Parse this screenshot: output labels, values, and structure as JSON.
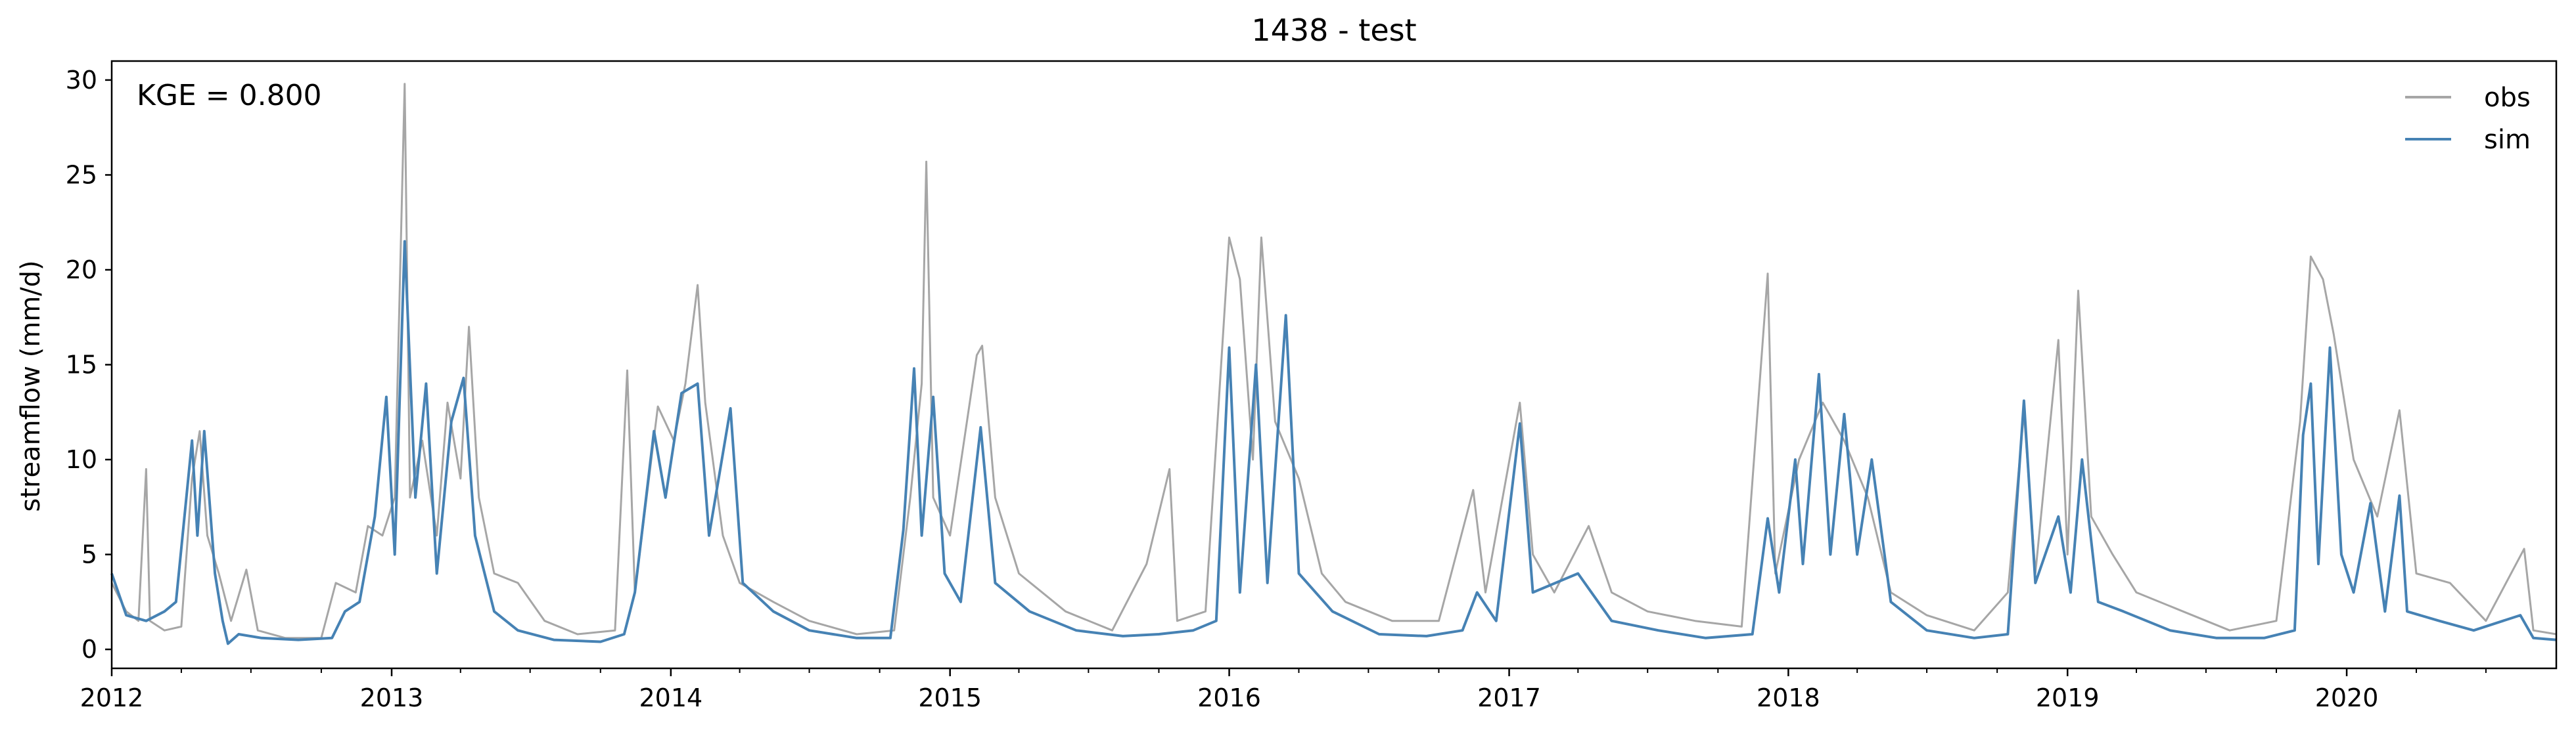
{
  "chart_data": {
    "type": "line",
    "title": "1438 - test",
    "xlabel": "",
    "ylabel": "streamflow (mm/d)",
    "xlim": [
      "2012-01-01",
      "2020-10-01"
    ],
    "ylim": [
      -1,
      31
    ],
    "x_ticks": [
      "2012",
      "2013",
      "2014",
      "2015",
      "2016",
      "2017",
      "2018",
      "2019",
      "2020"
    ],
    "y_ticks": [
      0,
      5,
      10,
      15,
      20,
      25,
      30
    ],
    "grid": false,
    "legend": "top-right",
    "annotation": "KGE = 0.800",
    "series": [
      {
        "name": "obs",
        "color": "#a6a6a6",
        "points": [
          [
            "2012-01-01",
            3.5
          ],
          [
            "2012-01-20",
            2.0
          ],
          [
            "2012-02-05",
            1.5
          ],
          [
            "2012-02-15",
            9.5
          ],
          [
            "2012-02-20",
            1.5
          ],
          [
            "2012-03-10",
            1.0
          ],
          [
            "2012-04-01",
            1.2
          ],
          [
            "2012-04-15",
            9.0
          ],
          [
            "2012-04-25",
            11.5
          ],
          [
            "2012-05-05",
            6.0
          ],
          [
            "2012-05-20",
            4.0
          ],
          [
            "2012-06-05",
            1.5
          ],
          [
            "2012-06-25",
            4.2
          ],
          [
            "2012-07-10",
            1.0
          ],
          [
            "2012-08-15",
            0.6
          ],
          [
            "2012-10-01",
            0.6
          ],
          [
            "2012-10-20",
            3.5
          ],
          [
            "2012-11-15",
            3.0
          ],
          [
            "2012-12-01",
            6.5
          ],
          [
            "2012-12-20",
            6.0
          ],
          [
            "2013-01-05",
            8.0
          ],
          [
            "2013-01-18",
            29.8
          ],
          [
            "2013-01-25",
            8.0
          ],
          [
            "2013-02-10",
            11.0
          ],
          [
            "2013-03-01",
            6.0
          ],
          [
            "2013-03-15",
            13.0
          ],
          [
            "2013-04-01",
            9.0
          ],
          [
            "2013-04-12",
            17.0
          ],
          [
            "2013-04-25",
            8.0
          ],
          [
            "2013-05-15",
            4.0
          ],
          [
            "2013-06-15",
            3.5
          ],
          [
            "2013-07-20",
            1.5
          ],
          [
            "2013-09-01",
            0.8
          ],
          [
            "2013-10-20",
            1.0
          ],
          [
            "2013-11-05",
            14.7
          ],
          [
            "2013-11-15",
            3.0
          ],
          [
            "2013-12-15",
            12.8
          ],
          [
            "2014-01-05",
            11.0
          ],
          [
            "2014-01-20",
            14.0
          ],
          [
            "2014-02-05",
            19.2
          ],
          [
            "2014-02-15",
            13.0
          ],
          [
            "2014-03-10",
            6.0
          ],
          [
            "2014-04-01",
            3.5
          ],
          [
            "2014-05-15",
            2.5
          ],
          [
            "2014-07-01",
            1.5
          ],
          [
            "2014-09-01",
            0.8
          ],
          [
            "2014-10-20",
            1.0
          ],
          [
            "2014-11-10",
            8.0
          ],
          [
            "2014-11-25",
            14.0
          ],
          [
            "2014-12-01",
            25.7
          ],
          [
            "2014-12-10",
            8.0
          ],
          [
            "2015-01-01",
            6.0
          ],
          [
            "2015-02-05",
            15.5
          ],
          [
            "2015-02-12",
            16.0
          ],
          [
            "2015-03-01",
            8.0
          ],
          [
            "2015-04-01",
            4.0
          ],
          [
            "2015-06-01",
            2.0
          ],
          [
            "2015-08-01",
            1.0
          ],
          [
            "2015-09-15",
            4.5
          ],
          [
            "2015-10-15",
            9.5
          ],
          [
            "2015-10-25",
            1.5
          ],
          [
            "2015-12-01",
            2.0
          ],
          [
            "2016-01-01",
            21.7
          ],
          [
            "2016-01-15",
            19.5
          ],
          [
            "2016-02-01",
            10.0
          ],
          [
            "2016-02-12",
            21.7
          ],
          [
            "2016-03-01",
            12.0
          ],
          [
            "2016-04-01",
            9.0
          ],
          [
            "2016-05-01",
            4.0
          ],
          [
            "2016-06-01",
            2.5
          ],
          [
            "2016-08-01",
            1.5
          ],
          [
            "2016-10-01",
            1.5
          ],
          [
            "2016-11-15",
            8.4
          ],
          [
            "2016-12-01",
            3.0
          ],
          [
            "2017-01-15",
            13.0
          ],
          [
            "2017-02-01",
            5.0
          ],
          [
            "2017-03-01",
            3.0
          ],
          [
            "2017-04-15",
            6.5
          ],
          [
            "2017-05-15",
            3.0
          ],
          [
            "2017-07-01",
            2.0
          ],
          [
            "2017-09-01",
            1.5
          ],
          [
            "2017-11-01",
            1.2
          ],
          [
            "2017-12-05",
            19.8
          ],
          [
            "2017-12-15",
            4.0
          ],
          [
            "2018-01-15",
            10.0
          ],
          [
            "2018-02-15",
            13.0
          ],
          [
            "2018-03-15",
            11.0
          ],
          [
            "2018-04-15",
            8.0
          ],
          [
            "2018-05-15",
            3.0
          ],
          [
            "2018-07-01",
            1.8
          ],
          [
            "2018-09-01",
            1.0
          ],
          [
            "2018-10-15",
            3.0
          ],
          [
            "2018-11-05",
            12.5
          ],
          [
            "2018-11-20",
            4.0
          ],
          [
            "2018-12-20",
            16.3
          ],
          [
            "2019-01-01",
            5.0
          ],
          [
            "2019-01-15",
            18.9
          ],
          [
            "2019-02-01",
            7.0
          ],
          [
            "2019-03-01",
            5.0
          ],
          [
            "2019-04-01",
            3.0
          ],
          [
            "2019-06-01",
            2.0
          ],
          [
            "2019-08-01",
            1.0
          ],
          [
            "2019-10-01",
            1.5
          ],
          [
            "2019-11-01",
            12.0
          ],
          [
            "2019-11-15",
            20.7
          ],
          [
            "2019-12-01",
            19.5
          ],
          [
            "2019-12-15",
            16.6
          ],
          [
            "2020-01-10",
            10.0
          ],
          [
            "2020-02-10",
            7.0
          ],
          [
            "2020-03-10",
            12.6
          ],
          [
            "2020-04-01",
            4.0
          ],
          [
            "2020-05-15",
            3.5
          ],
          [
            "2020-07-01",
            1.5
          ],
          [
            "2020-08-20",
            5.3
          ],
          [
            "2020-09-01",
            1.0
          ],
          [
            "2020-10-01",
            0.8
          ]
        ]
      },
      {
        "name": "sim",
        "color": "#4682b4",
        "points": [
          [
            "2012-01-01",
            4.0
          ],
          [
            "2012-01-20",
            1.8
          ],
          [
            "2012-02-15",
            1.5
          ],
          [
            "2012-03-10",
            2.0
          ],
          [
            "2012-03-25",
            2.5
          ],
          [
            "2012-04-15",
            11.0
          ],
          [
            "2012-04-22",
            6.0
          ],
          [
            "2012-05-01",
            11.5
          ],
          [
            "2012-05-15",
            4.0
          ],
          [
            "2012-05-25",
            1.5
          ],
          [
            "2012-06-01",
            0.3
          ],
          [
            "2012-06-15",
            0.8
          ],
          [
            "2012-07-15",
            0.6
          ],
          [
            "2012-09-01",
            0.5
          ],
          [
            "2012-10-15",
            0.6
          ],
          [
            "2012-11-01",
            2.0
          ],
          [
            "2012-11-20",
            2.5
          ],
          [
            "2012-12-10",
            7.0
          ],
          [
            "2012-12-25",
            13.3
          ],
          [
            "2013-01-05",
            5.0
          ],
          [
            "2013-01-18",
            21.5
          ],
          [
            "2013-02-01",
            8.0
          ],
          [
            "2013-02-15",
            14.0
          ],
          [
            "2013-03-01",
            4.0
          ],
          [
            "2013-03-20",
            12.0
          ],
          [
            "2013-04-05",
            14.3
          ],
          [
            "2013-04-20",
            6.0
          ],
          [
            "2013-05-15",
            2.0
          ],
          [
            "2013-06-15",
            1.0
          ],
          [
            "2013-08-01",
            0.5
          ],
          [
            "2013-10-01",
            0.4
          ],
          [
            "2013-11-01",
            0.8
          ],
          [
            "2013-11-15",
            3.0
          ],
          [
            "2013-12-10",
            11.5
          ],
          [
            "2013-12-25",
            8.0
          ],
          [
            "2014-01-15",
            13.5
          ],
          [
            "2014-02-05",
            14.0
          ],
          [
            "2014-02-20",
            6.0
          ],
          [
            "2014-03-20",
            12.7
          ],
          [
            "2014-04-05",
            3.5
          ],
          [
            "2014-05-15",
            2.0
          ],
          [
            "2014-07-01",
            1.0
          ],
          [
            "2014-09-01",
            0.6
          ],
          [
            "2014-10-15",
            0.6
          ],
          [
            "2014-11-01",
            6.3
          ],
          [
            "2014-11-15",
            14.8
          ],
          [
            "2014-11-25",
            6.0
          ],
          [
            "2014-12-10",
            13.3
          ],
          [
            "2014-12-25",
            4.0
          ],
          [
            "2015-01-15",
            2.5
          ],
          [
            "2015-02-10",
            11.7
          ],
          [
            "2015-03-01",
            3.5
          ],
          [
            "2015-04-15",
            2.0
          ],
          [
            "2015-06-15",
            1.0
          ],
          [
            "2015-08-15",
            0.7
          ],
          [
            "2015-10-01",
            0.8
          ],
          [
            "2015-11-15",
            1.0
          ],
          [
            "2015-12-15",
            1.5
          ],
          [
            "2016-01-01",
            15.9
          ],
          [
            "2016-01-15",
            3.0
          ],
          [
            "2016-02-05",
            15.0
          ],
          [
            "2016-02-20",
            3.5
          ],
          [
            "2016-03-15",
            17.6
          ],
          [
            "2016-04-01",
            4.0
          ],
          [
            "2016-05-15",
            2.0
          ],
          [
            "2016-07-15",
            0.8
          ],
          [
            "2016-09-15",
            0.7
          ],
          [
            "2016-11-01",
            1.0
          ],
          [
            "2016-11-20",
            3.0
          ],
          [
            "2016-12-15",
            1.5
          ],
          [
            "2017-01-15",
            11.9
          ],
          [
            "2017-02-01",
            3.0
          ],
          [
            "2017-04-01",
            4.0
          ],
          [
            "2017-05-15",
            1.5
          ],
          [
            "2017-07-15",
            1.0
          ],
          [
            "2017-09-15",
            0.6
          ],
          [
            "2017-11-15",
            0.8
          ],
          [
            "2017-12-05",
            6.9
          ],
          [
            "2017-12-20",
            3.0
          ],
          [
            "2018-01-10",
            10.0
          ],
          [
            "2018-01-20",
            4.5
          ],
          [
            "2018-02-10",
            14.5
          ],
          [
            "2018-02-25",
            5.0
          ],
          [
            "2018-03-15",
            12.4
          ],
          [
            "2018-04-01",
            5.0
          ],
          [
            "2018-04-20",
            10.0
          ],
          [
            "2018-05-15",
            2.5
          ],
          [
            "2018-07-01",
            1.0
          ],
          [
            "2018-09-01",
            0.6
          ],
          [
            "2018-10-15",
            0.8
          ],
          [
            "2018-11-05",
            13.1
          ],
          [
            "2018-11-20",
            3.5
          ],
          [
            "2018-12-20",
            7.0
          ],
          [
            "2019-01-05",
            3.0
          ],
          [
            "2019-01-20",
            10.0
          ],
          [
            "2019-02-10",
            2.5
          ],
          [
            "2019-03-15",
            2.0
          ],
          [
            "2019-05-15",
            1.0
          ],
          [
            "2019-07-15",
            0.6
          ],
          [
            "2019-09-15",
            0.6
          ],
          [
            "2019-10-25",
            1.0
          ],
          [
            "2019-11-05",
            11.3
          ],
          [
            "2019-11-15",
            14.0
          ],
          [
            "2019-11-25",
            4.5
          ],
          [
            "2019-12-10",
            15.9
          ],
          [
            "2019-12-25",
            5.0
          ],
          [
            "2020-01-10",
            3.0
          ],
          [
            "2020-02-01",
            7.7
          ],
          [
            "2020-02-20",
            2.0
          ],
          [
            "2020-03-10",
            8.1
          ],
          [
            "2020-03-20",
            2.0
          ],
          [
            "2020-05-01",
            1.5
          ],
          [
            "2020-06-15",
            1.0
          ],
          [
            "2020-08-15",
            1.8
          ],
          [
            "2020-09-01",
            0.6
          ],
          [
            "2020-10-01",
            0.5
          ]
        ]
      }
    ]
  }
}
